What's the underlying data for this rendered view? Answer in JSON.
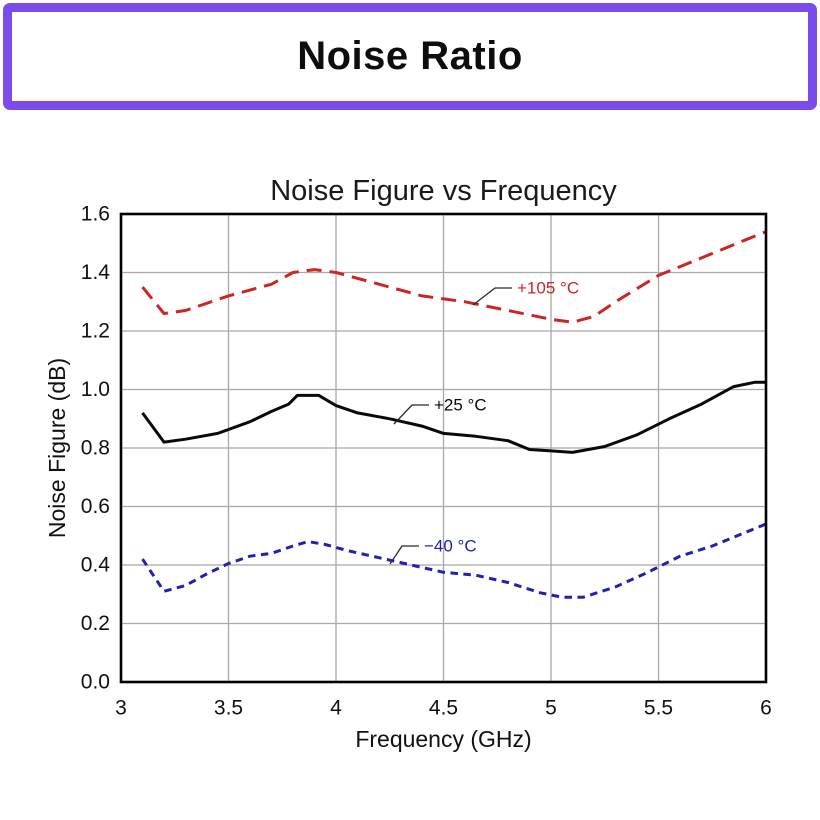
{
  "header": {
    "title": "Noise Ratio",
    "border_color": "#7c4bec"
  },
  "chart_data": {
    "type": "line",
    "title": "Noise Figure vs Frequency",
    "xlabel": "Frequency (GHz)",
    "ylabel": "Noise Figure (dB)",
    "xlim": [
      3,
      6
    ],
    "ylim": [
      0,
      1.6
    ],
    "grid": true,
    "xticks": [
      3,
      3.5,
      4,
      4.5,
      5,
      5.5,
      6
    ],
    "xtick_labels": [
      "3",
      "3.5",
      "4",
      "4.5",
      "5",
      "5.5",
      "6"
    ],
    "yticks": [
      0,
      0.2,
      0.4,
      0.6,
      0.8,
      1.0,
      1.2,
      1.4,
      1.6
    ],
    "ytick_labels": [
      "0.0",
      "0.2",
      "0.4",
      "0.6",
      "0.8",
      "1.0",
      "1.2",
      "1.4",
      "1.6"
    ],
    "colors": {
      "grid": "#a8a8a8",
      "frame": "#000000",
      "title": "#1a1a1a"
    },
    "series": [
      {
        "name": "+105 °C",
        "color": "#cd2424",
        "style": "dashed-long",
        "x": [
          3.1,
          3.2,
          3.3,
          3.5,
          3.6,
          3.7,
          3.8,
          3.9,
          4.0,
          4.2,
          4.4,
          4.6,
          4.8,
          5.0,
          5.1,
          5.2,
          5.3,
          5.5,
          5.7,
          5.9,
          6.0
        ],
        "y": [
          1.35,
          1.26,
          1.27,
          1.32,
          1.34,
          1.36,
          1.4,
          1.41,
          1.4,
          1.36,
          1.32,
          1.3,
          1.27,
          1.24,
          1.23,
          1.25,
          1.3,
          1.39,
          1.45,
          1.51,
          1.54
        ]
      },
      {
        "name": "+25 °C",
        "color": "#0a0a0a",
        "style": "solid",
        "x": [
          3.1,
          3.2,
          3.3,
          3.45,
          3.6,
          3.7,
          3.78,
          3.82,
          3.92,
          4.0,
          4.1,
          4.25,
          4.4,
          4.5,
          4.65,
          4.8,
          4.9,
          5.0,
          5.1,
          5.25,
          5.4,
          5.55,
          5.7,
          5.85,
          5.95,
          6.0
        ],
        "y": [
          0.92,
          0.82,
          0.83,
          0.85,
          0.89,
          0.925,
          0.95,
          0.98,
          0.98,
          0.945,
          0.92,
          0.9,
          0.875,
          0.85,
          0.84,
          0.825,
          0.795,
          0.79,
          0.785,
          0.805,
          0.845,
          0.9,
          0.95,
          1.01,
          1.025,
          1.025
        ]
      },
      {
        "name": "−40 °C",
        "color": "#2121b0",
        "style": "dashed-short",
        "x": [
          3.1,
          3.2,
          3.3,
          3.4,
          3.5,
          3.6,
          3.7,
          3.8,
          3.87,
          3.95,
          4.05,
          4.2,
          4.35,
          4.5,
          4.65,
          4.8,
          4.95,
          5.05,
          5.15,
          5.3,
          5.45,
          5.6,
          5.75,
          5.9,
          6.0
        ],
        "y": [
          0.42,
          0.31,
          0.33,
          0.37,
          0.405,
          0.43,
          0.44,
          0.465,
          0.48,
          0.47,
          0.45,
          0.425,
          0.4,
          0.375,
          0.365,
          0.34,
          0.305,
          0.29,
          0.29,
          0.325,
          0.375,
          0.43,
          0.465,
          0.51,
          0.54
        ]
      }
    ],
    "annotations": [
      {
        "text": "+105 °C",
        "color": "#cd2424",
        "tx": 517,
        "ty": 288,
        "ax": 473,
        "ay": 305
      },
      {
        "text": "+25 °C",
        "color": "#0a0a0a",
        "tx": 434,
        "ty": 405,
        "ax": 394,
        "ay": 424
      },
      {
        "text": "−40 °C",
        "color": "#2121b0",
        "tx": 424,
        "ty": 546,
        "ax": 390,
        "ay": 564
      }
    ],
    "legend_position": "inline-annotations"
  }
}
